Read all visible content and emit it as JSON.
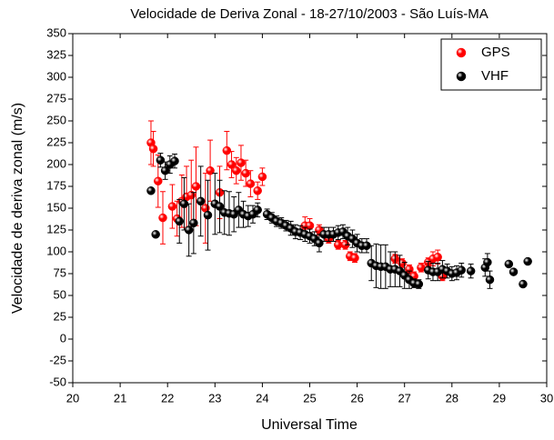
{
  "chart_data": {
    "type": "scatter",
    "title": "Velocidade de Deriva Zonal - 18-27/10/2003 - São Luís-MA",
    "x_label": "Universal Time",
    "y_label": "Velocidade de deriva zonal (m/s)",
    "xlim": [
      20,
      30
    ],
    "xticks": [
      20,
      21,
      22,
      23,
      24,
      25,
      26,
      27,
      28,
      29,
      30
    ],
    "ylim": [
      -50,
      350
    ],
    "yticks": [
      -50,
      -25,
      0,
      25,
      50,
      75,
      100,
      125,
      150,
      175,
      200,
      225,
      250,
      275,
      300,
      325,
      350
    ],
    "legend_position": "upper right",
    "series": [
      {
        "name": "GPS",
        "color": "#ff0000",
        "x": [
          21.65,
          21.7,
          21.8,
          21.9,
          22.1,
          22.2,
          22.3,
          22.4,
          22.5,
          22.6,
          22.8,
          22.9,
          23.1,
          23.25,
          23.35,
          23.45,
          23.55,
          23.65,
          23.75,
          23.9,
          24.0,
          24.9,
          25.0,
          25.2,
          25.4,
          25.6,
          25.75,
          25.85,
          25.95,
          26.8,
          26.95,
          27.1,
          27.2,
          27.35,
          27.5,
          27.6,
          27.7,
          27.8
        ],
        "values": [
          225,
          218,
          181,
          139,
          152,
          138,
          158,
          163,
          165,
          175,
          150,
          193,
          168,
          216,
          200,
          193,
          202,
          190,
          178,
          170,
          186,
          130,
          130,
          125,
          115,
          108,
          108,
          95,
          93,
          92,
          87,
          80,
          72,
          82,
          88,
          92,
          94,
          72
        ],
        "errors": [
          25,
          20,
          30,
          30,
          25,
          20,
          30,
          35,
          40,
          45,
          40,
          35,
          30,
          22,
          15,
          15,
          20,
          15,
          15,
          10,
          10,
          10,
          8,
          6,
          5,
          5,
          5,
          5,
          5,
          5,
          5,
          5,
          5,
          5,
          5,
          8,
          8,
          5
        ]
      },
      {
        "name": "VHF",
        "color": "#000000",
        "x": [
          21.65,
          21.75,
          21.85,
          21.95,
          22.05,
          22.15,
          22.25,
          22.35,
          22.45,
          22.55,
          22.7,
          22.85,
          23.0,
          23.1,
          23.2,
          23.3,
          23.4,
          23.5,
          23.6,
          23.7,
          23.8,
          23.9,
          24.1,
          24.2,
          24.3,
          24.4,
          24.5,
          24.6,
          24.7,
          24.8,
          24.9,
          25.0,
          25.1,
          25.2,
          25.3,
          25.4,
          25.5,
          25.6,
          25.7,
          25.8,
          25.9,
          26.0,
          26.1,
          26.2,
          26.3,
          26.4,
          26.5,
          26.6,
          26.7,
          26.8,
          26.9,
          27.0,
          27.1,
          27.2,
          27.3,
          27.5,
          27.6,
          27.7,
          27.8,
          27.9,
          28.0,
          28.1,
          28.2,
          28.4,
          28.7,
          28.75,
          28.8,
          29.2,
          29.3,
          29.5,
          29.6
        ],
        "values": [
          170,
          120,
          205,
          193,
          200,
          204,
          135,
          155,
          125,
          133,
          158,
          142,
          155,
          152,
          145,
          144,
          143,
          148,
          143,
          141,
          143,
          148,
          143,
          139,
          135,
          133,
          130,
          127,
          123,
          122,
          120,
          118,
          115,
          110,
          120,
          120,
          120,
          122,
          123,
          118,
          115,
          110,
          107,
          107,
          87,
          84,
          83,
          83,
          80,
          80,
          78,
          73,
          68,
          64,
          63,
          79,
          77,
          77,
          80,
          78,
          75,
          76,
          79,
          78,
          82,
          88,
          68,
          86,
          77,
          63,
          89
        ],
        "errors": [
          0,
          0,
          8,
          10,
          10,
          8,
          25,
          30,
          30,
          35,
          40,
          40,
          35,
          30,
          25,
          25,
          20,
          20,
          15,
          12,
          10,
          8,
          6,
          6,
          6,
          6,
          6,
          8,
          8,
          8,
          8,
          8,
          8,
          10,
          8,
          8,
          8,
          8,
          8,
          10,
          10,
          10,
          8,
          8,
          20,
          25,
          25,
          25,
          20,
          20,
          18,
          15,
          10,
          5,
          5,
          10,
          10,
          10,
          10,
          8,
          8,
          8,
          8,
          8,
          10,
          10,
          10,
          0,
          0,
          0,
          0
        ]
      }
    ]
  }
}
